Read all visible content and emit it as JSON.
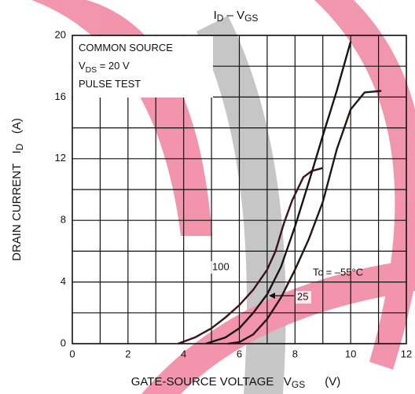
{
  "chart_data": {
    "type": "line",
    "title": [
      {
        "text": "I"
      },
      {
        "text": "D",
        "sub": true
      },
      {
        "text": " – V"
      },
      {
        "text": "GS",
        "sub": true
      }
    ],
    "x_label": [
      {
        "text": "GATE-SOURCE VOLTAGE   V"
      },
      {
        "text": "GS",
        "sub": true
      },
      {
        "text": "      (V)"
      }
    ],
    "y_label": [
      {
        "text": "DRAIN CURRENT   I"
      },
      {
        "text": "D",
        "sub": true
      },
      {
        "text": "   (A)"
      }
    ],
    "conditions": [
      [
        {
          "text": "COMMON SOURCE"
        }
      ],
      [
        {
          "text": "V"
        },
        {
          "text": "DS",
          "sub": true
        },
        {
          "text": " = 20 V"
        }
      ],
      [
        {
          "text": "PULSE TEST"
        }
      ]
    ],
    "xlim": [
      0,
      12
    ],
    "ylim": [
      0,
      20
    ],
    "xticks": [
      0,
      2,
      4,
      6,
      8,
      10,
      12
    ],
    "yticks": [
      0,
      4,
      8,
      12,
      16,
      20
    ],
    "xgrid": [
      0,
      1,
      2,
      3,
      4,
      5,
      6,
      7,
      8,
      9,
      10,
      11,
      12
    ],
    "ygrid": [
      0,
      2,
      4,
      6,
      8,
      10,
      12,
      14,
      16,
      18,
      20
    ],
    "series": [
      {
        "name": "100",
        "color": "#3a1418",
        "x": [
          3.8,
          4.4,
          5.0,
          5.5,
          6.0,
          6.5,
          7.0,
          7.3,
          7.6,
          7.9,
          8.3,
          8.6,
          9.0
        ],
        "values": [
          0,
          0.4,
          1.0,
          1.7,
          2.5,
          3.5,
          4.8,
          6.0,
          7.8,
          9.3,
          10.8,
          11.2,
          11.4
        ]
      },
      {
        "name": "25",
        "color": "#1a1212",
        "x": [
          4.8,
          5.5,
          6.0,
          6.5,
          7.0,
          7.5,
          8.0,
          8.5,
          9.0,
          9.5,
          10.0
        ],
        "values": [
          0,
          0.4,
          1.0,
          2.0,
          3.2,
          5.0,
          7.6,
          10.5,
          13.5,
          16.4,
          19.6
        ]
      },
      {
        "name": "Tc = –55°C",
        "color": "#221616",
        "x": [
          5.6,
          6.0,
          6.5,
          7.0,
          7.5,
          8.0,
          8.5,
          9.0,
          9.5,
          10.0,
          10.5,
          11.1
        ],
        "values": [
          0,
          0.1,
          0.6,
          1.6,
          3.0,
          4.8,
          6.8,
          9.2,
          12.6,
          15.2,
          16.3,
          16.4
        ]
      }
    ]
  }
}
